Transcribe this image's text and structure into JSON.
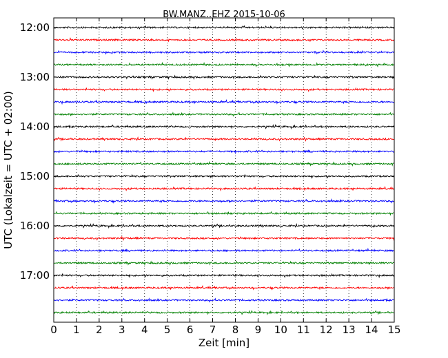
{
  "chart_data": {
    "type": "line",
    "title": "BW.MANZ..EHZ 2015-10-06",
    "xlabel": "Zeit  [min]",
    "ylabel": "UTC (Lokalzeit = UTC + 02:00)",
    "xlim": [
      0,
      15
    ],
    "x_ticks": [
      "0",
      "1",
      "2",
      "3",
      "4",
      "5",
      "6",
      "7",
      "8",
      "9",
      "10",
      "11",
      "12",
      "13",
      "14",
      "15"
    ],
    "y_ticks": [
      "12:00",
      "13:00",
      "14:00",
      "15:00",
      "16:00",
      "17:00"
    ],
    "trace_start": "12:00",
    "trace_interval_min": 15,
    "trace_count": 24,
    "trace_colors": [
      "#000000",
      "#ff0000",
      "#0000ff",
      "#008000"
    ],
    "grid": {
      "x": true,
      "y": false,
      "style": "dotted"
    }
  }
}
